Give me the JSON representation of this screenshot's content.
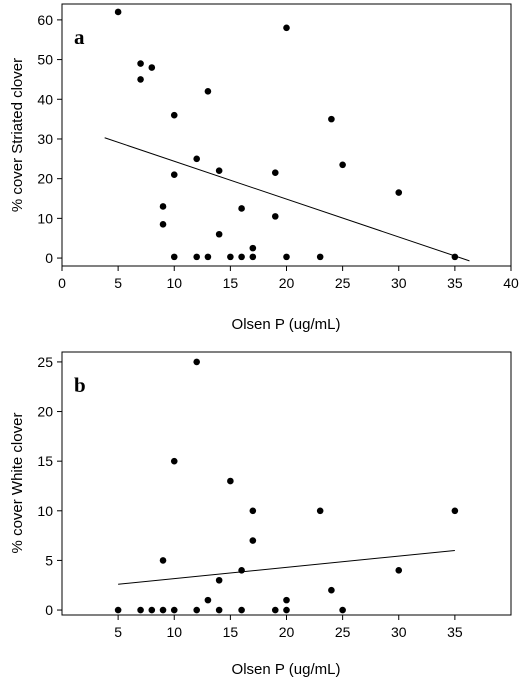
{
  "chart_data": [
    {
      "type": "scatter",
      "panel_label": "a",
      "xlabel": "Olsen P (ug/mL)",
      "ylabel": "% cover Striated clover",
      "xlim": [
        0,
        40
      ],
      "ylim": [
        -2,
        64
      ],
      "xticks": [
        0,
        5,
        10,
        15,
        20,
        25,
        30,
        35,
        40
      ],
      "yticks": [
        0,
        10,
        20,
        30,
        40,
        50,
        60
      ],
      "grid": false,
      "points": [
        {
          "x": 5,
          "y": 62
        },
        {
          "x": 7,
          "y": 49
        },
        {
          "x": 7,
          "y": 45
        },
        {
          "x": 8,
          "y": 48
        },
        {
          "x": 9,
          "y": 13
        },
        {
          "x": 9,
          "y": 8.5
        },
        {
          "x": 10,
          "y": 36
        },
        {
          "x": 10,
          "y": 21
        },
        {
          "x": 10,
          "y": 0.3
        },
        {
          "x": 12,
          "y": 25
        },
        {
          "x": 12,
          "y": 0.3
        },
        {
          "x": 13,
          "y": 42
        },
        {
          "x": 13,
          "y": 0.3
        },
        {
          "x": 14,
          "y": 22
        },
        {
          "x": 14,
          "y": 6
        },
        {
          "x": 15,
          "y": 0.3
        },
        {
          "x": 16,
          "y": 12.5
        },
        {
          "x": 16,
          "y": 0.3
        },
        {
          "x": 17,
          "y": 2.5
        },
        {
          "x": 17,
          "y": 0.3
        },
        {
          "x": 19,
          "y": 21.5
        },
        {
          "x": 19,
          "y": 10.5
        },
        {
          "x": 20,
          "y": 58
        },
        {
          "x": 20,
          "y": 0.3
        },
        {
          "x": 23,
          "y": 0.3
        },
        {
          "x": 24,
          "y": 35
        },
        {
          "x": 25,
          "y": 23.5
        },
        {
          "x": 30,
          "y": 16.5
        },
        {
          "x": 35,
          "y": 0.3
        }
      ],
      "trendline": [
        {
          "x": 3.8,
          "y": 30.3
        },
        {
          "x": 36.3,
          "y": -0.7
        }
      ]
    },
    {
      "type": "scatter",
      "panel_label": "b",
      "xlabel": "Olsen P (ug/mL)",
      "ylabel": "% cover White clover",
      "xlim": [
        0,
        40
      ],
      "ylim": [
        -0.5,
        26
      ],
      "xticks": [
        5,
        10,
        15,
        20,
        25,
        30,
        35
      ],
      "yticks": [
        0,
        5,
        10,
        15,
        20,
        25
      ],
      "grid": false,
      "points": [
        {
          "x": 5,
          "y": 0
        },
        {
          "x": 7,
          "y": 0
        },
        {
          "x": 8,
          "y": 0
        },
        {
          "x": 9,
          "y": 0
        },
        {
          "x": 9,
          "y": 5
        },
        {
          "x": 10,
          "y": 15
        },
        {
          "x": 10,
          "y": 0
        },
        {
          "x": 12,
          "y": 25
        },
        {
          "x": 12,
          "y": 0
        },
        {
          "x": 13,
          "y": 1
        },
        {
          "x": 14,
          "y": 3
        },
        {
          "x": 14,
          "y": 0
        },
        {
          "x": 15,
          "y": 13
        },
        {
          "x": 16,
          "y": 4
        },
        {
          "x": 16,
          "y": 0
        },
        {
          "x": 17,
          "y": 10
        },
        {
          "x": 17,
          "y": 7
        },
        {
          "x": 19,
          "y": 0
        },
        {
          "x": 20,
          "y": 1
        },
        {
          "x": 20,
          "y": 0
        },
        {
          "x": 23,
          "y": 10
        },
        {
          "x": 24,
          "y": 2
        },
        {
          "x": 25,
          "y": 0
        },
        {
          "x": 30,
          "y": 4
        },
        {
          "x": 35,
          "y": 10
        }
      ],
      "trendline": [
        {
          "x": 5,
          "y": 2.6
        },
        {
          "x": 35,
          "y": 6.0
        }
      ]
    }
  ]
}
